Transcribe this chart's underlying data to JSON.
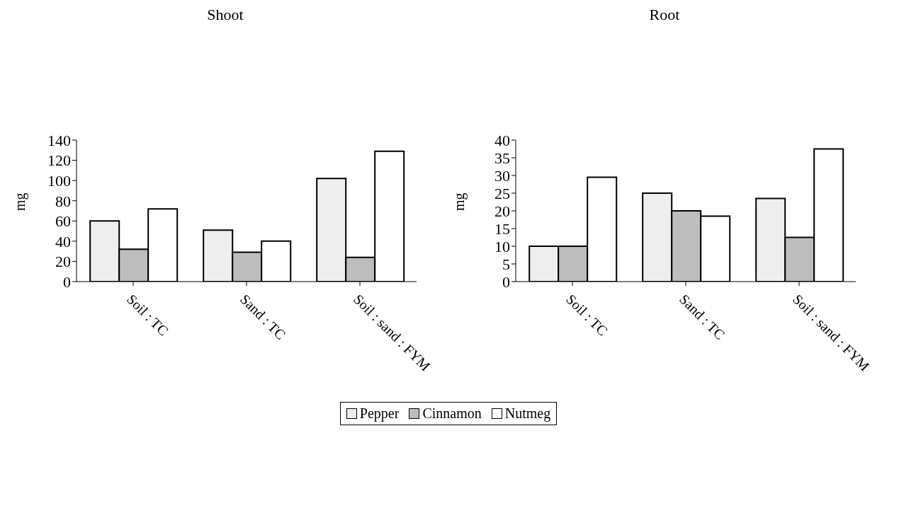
{
  "chart_data": [
    {
      "type": "bar",
      "title": "Shoot",
      "ylabel": "mg",
      "categories": [
        "Soil : TC",
        "Sand : TC",
        "Soil : sand : FYM"
      ],
      "series": [
        {
          "name": "Pepper",
          "color": "#eeeeee",
          "values": [
            60,
            51,
            102
          ]
        },
        {
          "name": "Cinnamon",
          "color": "#bdbdbd",
          "values": [
            32,
            29,
            24
          ]
        },
        {
          "name": "Nutmeg",
          "color": "#ffffff",
          "values": [
            72,
            40,
            129
          ]
        }
      ],
      "ylim": [
        0,
        140
      ],
      "yticks": [
        0,
        20,
        40,
        60,
        80,
        100,
        120,
        140
      ],
      "grid": false,
      "legend": "bottom"
    },
    {
      "type": "bar",
      "title": "Root",
      "ylabel": "mg",
      "categories": [
        "Soil : TC",
        "Sand : TC",
        "Soil : sand : FYM"
      ],
      "series": [
        {
          "name": "Pepper",
          "color": "#eeeeee",
          "values": [
            10,
            25,
            23.5
          ]
        },
        {
          "name": "Cinnamon",
          "color": "#bdbdbd",
          "values": [
            10,
            20,
            12.5
          ]
        },
        {
          "name": "Nutmeg",
          "color": "#ffffff",
          "values": [
            29.5,
            18.5,
            37.5
          ]
        }
      ],
      "ylim": [
        0,
        40
      ],
      "yticks": [
        0,
        5,
        10,
        15,
        20,
        25,
        30,
        35,
        40
      ],
      "grid": false,
      "legend": "bottom"
    }
  ]
}
